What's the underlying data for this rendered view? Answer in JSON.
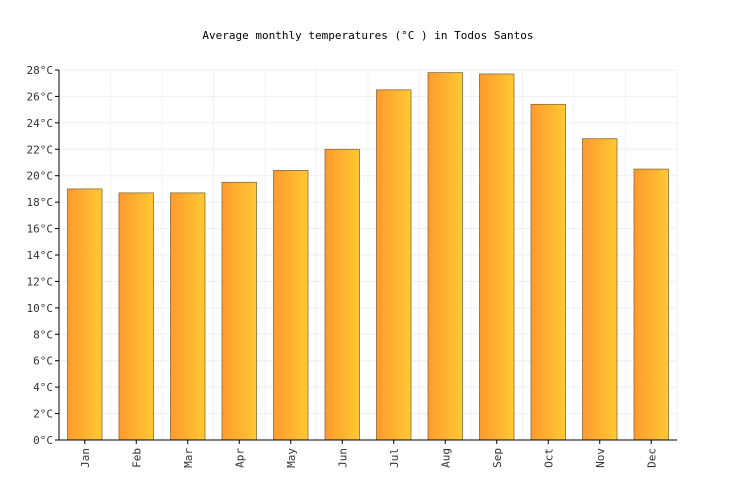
{
  "chart_data": {
    "type": "bar",
    "title": "Average monthly temperatures (°C ) in Todos Santos",
    "xlabel": "",
    "ylabel": "",
    "categories": [
      "Jan",
      "Feb",
      "Mar",
      "Apr",
      "May",
      "Jun",
      "Jul",
      "Aug",
      "Sep",
      "Oct",
      "Nov",
      "Dec"
    ],
    "values": [
      19.0,
      18.7,
      18.7,
      19.5,
      20.4,
      22.0,
      26.5,
      27.8,
      27.7,
      25.4,
      22.8,
      20.5
    ],
    "ylim": [
      0,
      28
    ],
    "yticks": [
      0,
      2,
      4,
      6,
      8,
      10,
      12,
      14,
      16,
      18,
      20,
      22,
      24,
      26,
      28
    ],
    "ytick_suffix": "°C",
    "grid": true,
    "legend": "none",
    "colors": {
      "bar_start": "#ff9a2e",
      "bar_end": "#ffc933",
      "bar_border": "#8a6a3a"
    }
  }
}
